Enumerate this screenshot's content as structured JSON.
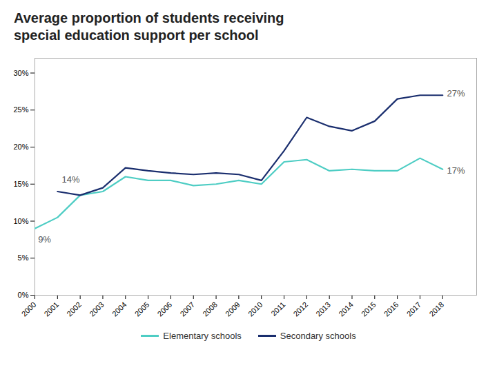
{
  "chart_data": {
    "type": "line",
    "title": "Average proportion of students receiving\nspecial education support per school",
    "x": [
      2000,
      2001,
      2002,
      2003,
      2004,
      2005,
      2006,
      2007,
      2008,
      2009,
      2010,
      2011,
      2012,
      2013,
      2014,
      2015,
      2016,
      2017,
      2018
    ],
    "series": [
      {
        "name": "Elementary schools",
        "color": "#4ecdc4",
        "values": [
          0.09,
          0.105,
          0.135,
          0.14,
          0.16,
          0.155,
          0.155,
          0.148,
          0.15,
          0.155,
          0.15,
          0.18,
          0.183,
          0.168,
          0.17,
          0.168,
          0.168,
          0.185,
          0.17
        ]
      },
      {
        "name": "Secondary schools",
        "color": "#1a2e6e",
        "values": [
          null,
          0.14,
          0.135,
          0.145,
          0.172,
          0.168,
          0.165,
          0.163,
          0.165,
          0.163,
          0.155,
          0.195,
          0.24,
          0.228,
          0.222,
          0.235,
          0.265,
          0.27,
          0.27
        ]
      }
    ],
    "xlim": [
      2000,
      2019.5
    ],
    "xticks": [
      2000,
      2001,
      2002,
      2003,
      2004,
      2005,
      2006,
      2007,
      2008,
      2009,
      2010,
      2011,
      2012,
      2013,
      2014,
      2015,
      2016,
      2017,
      2018
    ],
    "ylim": [
      0,
      0.32
    ],
    "yticks": [
      {
        "value": 0,
        "label": "0%"
      },
      {
        "value": 0.05,
        "label": "5%"
      },
      {
        "value": 0.1,
        "label": "10%"
      },
      {
        "value": 0.15,
        "label": "15%"
      },
      {
        "value": 0.2,
        "label": "20%"
      },
      {
        "value": 0.25,
        "label": "25%"
      },
      {
        "value": 0.3,
        "label": "30%"
      }
    ],
    "annotations": [
      {
        "text": "9%",
        "x": 2000.05,
        "y": 0.075
      },
      {
        "text": "14%",
        "x": 2001.1,
        "y": 0.152
      },
      {
        "text": "17%",
        "x": 2018.1,
        "y": 0.168
      },
      {
        "text": "27%",
        "x": 2018.1,
        "y": 0.272
      }
    ],
    "grid": false,
    "legend": "bottom"
  }
}
